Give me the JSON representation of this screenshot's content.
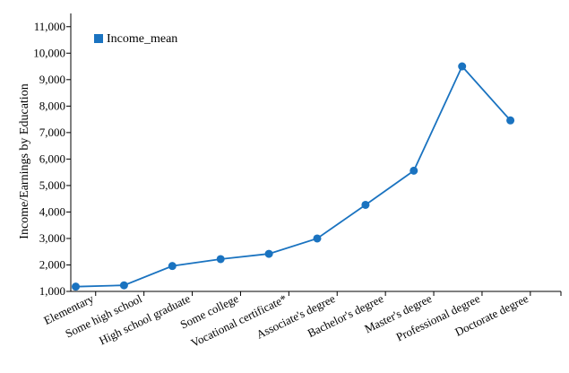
{
  "chart_data": {
    "type": "line",
    "title": "",
    "xlabel": "",
    "ylabel": "Income/Earnings by Education",
    "ylim": [
      1000,
      11500
    ],
    "yticks": [
      1000,
      2000,
      3000,
      4000,
      5000,
      6000,
      7000,
      8000,
      9000,
      10000,
      11000
    ],
    "ytick_labels": [
      "1,000",
      "2,000",
      "3,000",
      "4,000",
      "5,000",
      "6,000",
      "7,000",
      "8,000",
      "9,000",
      "10,000",
      "11,000"
    ],
    "categories": [
      "Elementary",
      "Some high school",
      "High school graduate",
      "Some college",
      "Vocational certificate*",
      "Associate's degree",
      "Bachelor's degree",
      "Master's degree",
      "Professional degree",
      "Doctorate degree"
    ],
    "series": [
      {
        "name": "Income_mean",
        "color": "#1a73c0",
        "values": [
          1180,
          1230,
          1960,
          2220,
          2420,
          3000,
          4270,
          5560,
          9500,
          7460
        ]
      }
    ],
    "legend": {
      "placement": "top-left"
    },
    "grid": false
  }
}
